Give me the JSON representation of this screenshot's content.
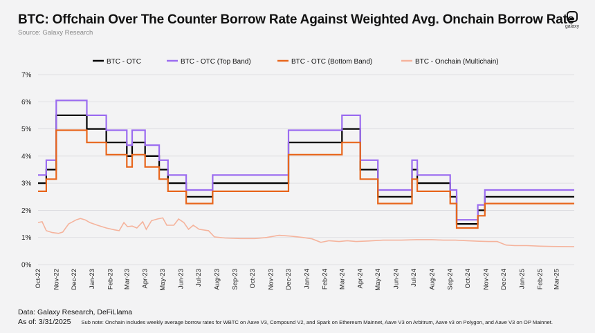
{
  "header": {
    "title": "BTC: Offchain Over The Counter Borrow Rate Against Weighted Avg. Onchain Borrow Rate",
    "source": "Source: Galaxy Research",
    "logo_text": "galaxy"
  },
  "footer": {
    "data_line": "Data: Galaxy Research, DeFiLlama",
    "as_of": "As of: 3/31/2025",
    "note": "Sub note: Onchain includes weekly average borrow rates for WBTC on Aave V3, Compound V2, and Spark on Ethereum Mainnet, Aave V3 on Arbitrum, Aave v3 on Polygon, and Aave V3 on OP Mainnet."
  },
  "colors": {
    "background": "#f3f3f4",
    "grid": "#d9d9dd",
    "otc": "#000000",
    "top_band": "#9b6cf0",
    "bottom_band": "#e8661c",
    "onchain": "#f5b39c"
  },
  "chart_data": {
    "type": "line",
    "title": "BTC: Offchain Over The Counter Borrow Rate Against Weighted Avg. Onchain Borrow Rate",
    "xlabel": "",
    "ylabel": "",
    "ylim": [
      0,
      7
    ],
    "yticks": [
      "0%",
      "1%",
      "2%",
      "3%",
      "4%",
      "5%",
      "6%",
      "7%"
    ],
    "grid": true,
    "legend_position": "top",
    "x_range": [
      "2022-10-01",
      "2025-03-31"
    ],
    "x_tick_labels": [
      "Oct-22",
      "Nov-22",
      "Dec-22",
      "Jan-23",
      "Feb-23",
      "Mar-23",
      "Apr-23",
      "May-23",
      "Jun-23",
      "Jul-23",
      "Aug-23",
      "Sep-23",
      "Oct-23",
      "Nov-23",
      "Dec-23",
      "Jan-24",
      "Feb-24",
      "Mar-24",
      "Apr-24",
      "May-24",
      "Jun-24",
      "Jul-24",
      "Aug-24",
      "Sep-24",
      "Oct-24",
      "Nov-24",
      "Dec-24",
      "Jan-25",
      "Feb-25",
      "Mar-25"
    ],
    "series": [
      {
        "name": "BTC - OTC",
        "color": "#000000",
        "step": true,
        "points": [
          [
            "2022-10-01",
            3.0
          ],
          [
            "2022-10-15",
            3.5
          ],
          [
            "2022-11-01",
            5.5
          ],
          [
            "2022-12-23",
            5.0
          ],
          [
            "2023-01-25",
            4.5
          ],
          [
            "2023-03-01",
            4.0
          ],
          [
            "2023-03-10",
            4.5
          ],
          [
            "2023-04-01",
            4.0
          ],
          [
            "2023-04-25",
            3.5
          ],
          [
            "2023-05-10",
            3.0
          ],
          [
            "2023-06-10",
            2.5
          ],
          [
            "2023-07-25",
            3.0
          ],
          [
            "2023-12-01",
            4.5
          ],
          [
            "2024-03-01",
            5.0
          ],
          [
            "2024-04-01",
            3.5
          ],
          [
            "2024-05-01",
            2.5
          ],
          [
            "2024-06-28",
            3.5
          ],
          [
            "2024-07-07",
            3.0
          ],
          [
            "2024-09-01",
            2.5
          ],
          [
            "2024-09-12",
            1.5
          ],
          [
            "2024-10-18",
            2.0
          ],
          [
            "2024-10-30",
            2.5
          ],
          [
            "2025-03-31",
            2.5
          ]
        ]
      },
      {
        "name": "BTC - OTC (Top Band)",
        "color": "#9b6cf0",
        "step": true,
        "points": [
          [
            "2022-10-01",
            3.3
          ],
          [
            "2022-10-15",
            3.85
          ],
          [
            "2022-11-01",
            6.05
          ],
          [
            "2022-12-23",
            5.5
          ],
          [
            "2023-01-25",
            4.95
          ],
          [
            "2023-03-01",
            4.4
          ],
          [
            "2023-03-10",
            4.95
          ],
          [
            "2023-04-01",
            4.4
          ],
          [
            "2023-04-25",
            3.85
          ],
          [
            "2023-05-10",
            3.3
          ],
          [
            "2023-06-10",
            2.75
          ],
          [
            "2023-07-25",
            3.3
          ],
          [
            "2023-12-01",
            4.95
          ],
          [
            "2024-03-01",
            5.5
          ],
          [
            "2024-04-01",
            3.85
          ],
          [
            "2024-05-01",
            2.75
          ],
          [
            "2024-06-28",
            3.85
          ],
          [
            "2024-07-07",
            3.3
          ],
          [
            "2024-09-01",
            2.75
          ],
          [
            "2024-09-12",
            1.65
          ],
          [
            "2024-10-18",
            2.2
          ],
          [
            "2024-10-30",
            2.75
          ],
          [
            "2025-03-31",
            2.75
          ]
        ]
      },
      {
        "name": "BTC - OTC (Bottom Band)",
        "color": "#e8661c",
        "step": true,
        "points": [
          [
            "2022-10-01",
            2.7
          ],
          [
            "2022-10-15",
            3.15
          ],
          [
            "2022-11-01",
            4.95
          ],
          [
            "2022-12-23",
            4.5
          ],
          [
            "2023-01-25",
            4.05
          ],
          [
            "2023-03-01",
            3.6
          ],
          [
            "2023-03-10",
            4.05
          ],
          [
            "2023-04-01",
            3.6
          ],
          [
            "2023-04-25",
            3.15
          ],
          [
            "2023-05-10",
            2.7
          ],
          [
            "2023-06-10",
            2.25
          ],
          [
            "2023-07-25",
            2.7
          ],
          [
            "2023-12-01",
            4.05
          ],
          [
            "2024-03-01",
            4.5
          ],
          [
            "2024-04-01",
            3.15
          ],
          [
            "2024-05-01",
            2.25
          ],
          [
            "2024-06-28",
            3.15
          ],
          [
            "2024-07-07",
            2.7
          ],
          [
            "2024-09-01",
            2.25
          ],
          [
            "2024-09-12",
            1.35
          ],
          [
            "2024-10-18",
            1.8
          ],
          [
            "2024-10-30",
            2.25
          ],
          [
            "2025-03-31",
            2.25
          ]
        ]
      },
      {
        "name": "BTC - Onchain (Multichain)",
        "color": "#f5b39c",
        "step": false,
        "points": [
          [
            "2022-10-01",
            1.55
          ],
          [
            "2022-10-08",
            1.58
          ],
          [
            "2022-10-15",
            1.25
          ],
          [
            "2022-10-25",
            1.18
          ],
          [
            "2022-11-05",
            1.15
          ],
          [
            "2022-11-12",
            1.2
          ],
          [
            "2022-11-22",
            1.5
          ],
          [
            "2022-12-05",
            1.65
          ],
          [
            "2022-12-12",
            1.7
          ],
          [
            "2022-12-20",
            1.65
          ],
          [
            "2022-12-28",
            1.55
          ],
          [
            "2023-01-10",
            1.45
          ],
          [
            "2023-01-25",
            1.35
          ],
          [
            "2023-02-08",
            1.28
          ],
          [
            "2023-02-16",
            1.25
          ],
          [
            "2023-02-24",
            1.55
          ],
          [
            "2023-03-02",
            1.4
          ],
          [
            "2023-03-10",
            1.42
          ],
          [
            "2023-03-18",
            1.35
          ],
          [
            "2023-03-28",
            1.58
          ],
          [
            "2023-04-03",
            1.3
          ],
          [
            "2023-04-12",
            1.62
          ],
          [
            "2023-04-22",
            1.68
          ],
          [
            "2023-05-01",
            1.72
          ],
          [
            "2023-05-08",
            1.45
          ],
          [
            "2023-05-20",
            1.45
          ],
          [
            "2023-05-28",
            1.68
          ],
          [
            "2023-06-06",
            1.55
          ],
          [
            "2023-06-14",
            1.3
          ],
          [
            "2023-06-22",
            1.45
          ],
          [
            "2023-07-02",
            1.3
          ],
          [
            "2023-07-18",
            1.25
          ],
          [
            "2023-07-28",
            1.02
          ],
          [
            "2023-08-15",
            0.98
          ],
          [
            "2023-09-10",
            0.96
          ],
          [
            "2023-10-05",
            0.96
          ],
          [
            "2023-10-25",
            1.0
          ],
          [
            "2023-11-15",
            1.08
          ],
          [
            "2023-12-05",
            1.05
          ],
          [
            "2023-12-25",
            1.0
          ],
          [
            "2024-01-10",
            0.95
          ],
          [
            "2024-01-25",
            0.82
          ],
          [
            "2024-02-08",
            0.88
          ],
          [
            "2024-02-25",
            0.85
          ],
          [
            "2024-03-10",
            0.88
          ],
          [
            "2024-03-25",
            0.85
          ],
          [
            "2024-04-15",
            0.87
          ],
          [
            "2024-05-10",
            0.9
          ],
          [
            "2024-06-10",
            0.9
          ],
          [
            "2024-07-05",
            0.92
          ],
          [
            "2024-08-01",
            0.92
          ],
          [
            "2024-08-20",
            0.9
          ],
          [
            "2024-09-10",
            0.9
          ],
          [
            "2024-09-30",
            0.88
          ],
          [
            "2024-10-20",
            0.86
          ],
          [
            "2024-11-05",
            0.85
          ],
          [
            "2024-11-20",
            0.85
          ],
          [
            "2024-12-05",
            0.72
          ],
          [
            "2024-12-20",
            0.7
          ],
          [
            "2025-01-10",
            0.7
          ],
          [
            "2025-02-01",
            0.68
          ],
          [
            "2025-02-20",
            0.67
          ],
          [
            "2025-03-31",
            0.66
          ]
        ]
      }
    ]
  }
}
